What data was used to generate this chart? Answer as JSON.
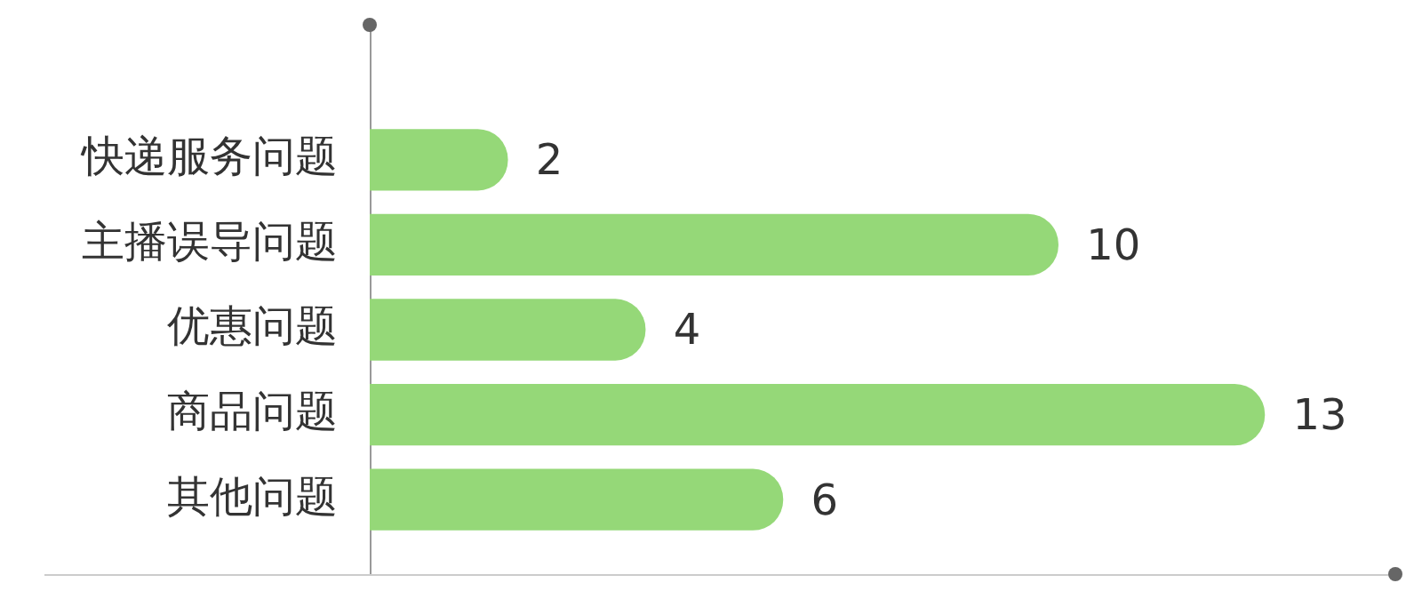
{
  "chart_data": {
    "type": "bar",
    "orientation": "horizontal",
    "categories": [
      "快递服务问题",
      "主播误导问题",
      "优惠问题",
      "商品问题",
      "其他问题"
    ],
    "values": [
      2,
      10,
      4,
      13,
      6
    ],
    "color": "#95d878",
    "data_labels": true,
    "legend": false
  }
}
